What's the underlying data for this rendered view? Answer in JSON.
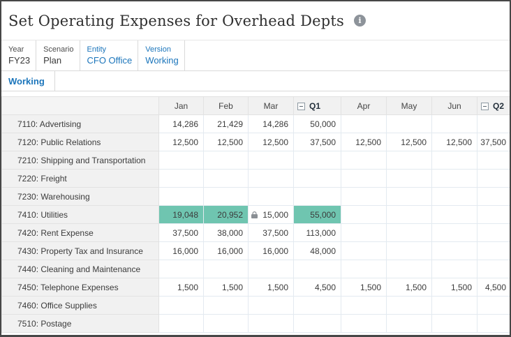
{
  "header": {
    "title": "Set Operating Expenses for Overhead Depts",
    "info_icon_glyph": "i"
  },
  "pov": {
    "items": [
      {
        "label": "Year",
        "value": "FY23",
        "link": false
      },
      {
        "label": "Scenario",
        "value": "Plan",
        "link": false
      },
      {
        "label": "Entity",
        "value": "CFO Office",
        "link": true
      },
      {
        "label": "Version",
        "value": "Working",
        "link": true
      }
    ]
  },
  "tabs": [
    {
      "label": "Working",
      "active": true
    }
  ],
  "grid": {
    "columns": [
      "Jan",
      "Feb",
      "Mar",
      "Q1",
      "Apr",
      "May",
      "Jun",
      "Q2"
    ],
    "collapsible_columns": [
      "Q1",
      "Q2"
    ],
    "rows": [
      {
        "label": "7110: Advertising",
        "values": [
          "14,286",
          "21,429",
          "14,286",
          "50,000",
          "",
          "",
          "",
          ""
        ]
      },
      {
        "label": "7120: Public Relations",
        "values": [
          "12,500",
          "12,500",
          "12,500",
          "37,500",
          "12,500",
          "12,500",
          "12,500",
          "37,500"
        ]
      },
      {
        "label": "7210: Shipping and Transportation",
        "values": [
          "",
          "",
          "",
          "",
          "",
          "",
          "",
          ""
        ]
      },
      {
        "label": "7220: Freight",
        "values": [
          "",
          "",
          "",
          "",
          "",
          "",
          "",
          ""
        ]
      },
      {
        "label": "7230: Warehousing",
        "values": [
          "",
          "",
          "",
          "",
          "",
          "",
          "",
          ""
        ]
      },
      {
        "label": "7410: Utilities",
        "values": [
          "19,048",
          "20,952",
          "15,000",
          "55,000",
          "",
          "",
          "",
          ""
        ],
        "highlight_cells": [
          0,
          1,
          3
        ],
        "locked_cells": [
          2
        ]
      },
      {
        "label": "7420: Rent Expense",
        "values": [
          "37,500",
          "38,000",
          "37,500",
          "113,000",
          "",
          "",
          "",
          ""
        ]
      },
      {
        "label": "7430: Property Tax and Insurance",
        "values": [
          "16,000",
          "16,000",
          "16,000",
          "48,000",
          "",
          "",
          "",
          ""
        ]
      },
      {
        "label": "7440: Cleaning and Maintenance",
        "values": [
          "",
          "",
          "",
          "",
          "",
          "",
          "",
          ""
        ]
      },
      {
        "label": "7450: Telephone Expenses",
        "values": [
          "1,500",
          "1,500",
          "1,500",
          "4,500",
          "1,500",
          "1,500",
          "1,500",
          "4,500"
        ]
      },
      {
        "label": "7460: Office Supplies",
        "values": [
          "",
          "",
          "",
          "",
          "",
          "",
          "",
          ""
        ]
      },
      {
        "label": "7510: Postage",
        "values": [
          "",
          "",
          "",
          "",
          "",
          "",
          "",
          ""
        ]
      }
    ]
  },
  "colors": {
    "accent_blue": "#1b75bb",
    "highlight_teal": "#6fc5b0",
    "header_gray": "#f1f1f1",
    "outer_border": "#474747"
  }
}
